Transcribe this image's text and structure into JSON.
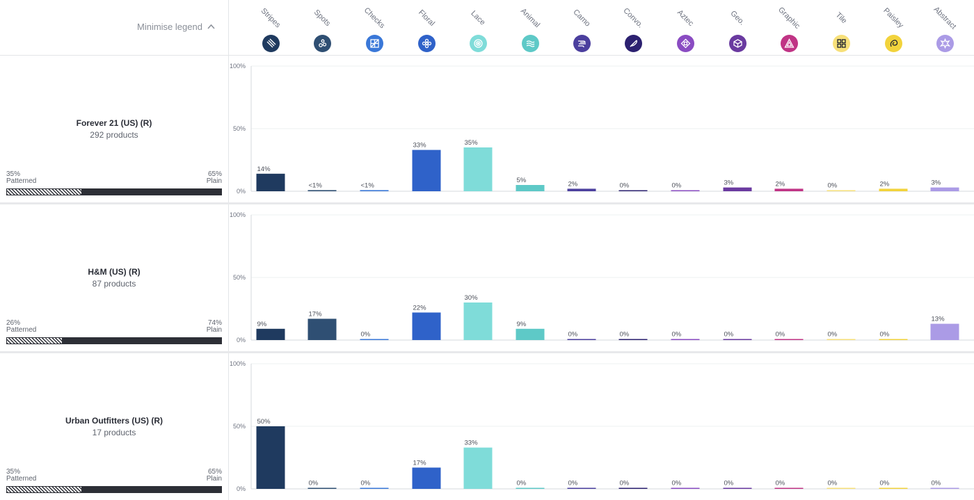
{
  "legend": {
    "minimise_label": "Minimise legend",
    "minimise_icon": "chevron-up-icon",
    "items": [
      {
        "label": "Stripes",
        "color": "#1f3a5f",
        "icon": "stripes-icon"
      },
      {
        "label": "Spots",
        "color": "#2f4f73",
        "icon": "spots-icon"
      },
      {
        "label": "Checks",
        "color": "#3a78d8",
        "icon": "checks-icon"
      },
      {
        "label": "Floral",
        "color": "#2f62c9",
        "icon": "floral-icon"
      },
      {
        "label": "Lace",
        "color": "#7fdcd9",
        "icon": "lace-icon"
      },
      {
        "label": "Animal",
        "color": "#5ec9c7",
        "icon": "animal-icon"
      },
      {
        "label": "Camo",
        "color": "#4b3f9e",
        "icon": "camo-icon"
      },
      {
        "label": "Convo.",
        "color": "#2c2170",
        "icon": "convo-icon"
      },
      {
        "label": "Aztec",
        "color": "#8a4cc2",
        "icon": "aztec-icon"
      },
      {
        "label": "Geo.",
        "color": "#6a3aa0",
        "icon": "geo-icon"
      },
      {
        "label": "Graphic",
        "color": "#c03485",
        "icon": "graphic-icon"
      },
      {
        "label": "Tile",
        "color": "#f7e07a",
        "icon": "tile-icon"
      },
      {
        "label": "Paisley",
        "color": "#f2d33c",
        "icon": "paisley-icon"
      },
      {
        "label": "Abstract",
        "color": "#ab9be6",
        "icon": "abstract-icon"
      }
    ]
  },
  "brands": [
    {
      "name": "Forever 21 (US) (R)",
      "count": "292 products",
      "patterned_pct": "35%",
      "patterned_label": "Patterned",
      "plain_pct": "65%",
      "plain_label": "Plain",
      "patterned_share": 0.35
    },
    {
      "name": "H&M (US) (R)",
      "count": "87 products",
      "patterned_pct": "26%",
      "patterned_label": "Patterned",
      "plain_pct": "74%",
      "plain_label": "Plain",
      "patterned_share": 0.26
    },
    {
      "name": "Urban Outfitters (US) (R)",
      "count": "17 products",
      "patterned_pct": "35%",
      "patterned_label": "Patterned",
      "plain_pct": "65%",
      "plain_label": "Plain",
      "patterned_share": 0.35
    }
  ],
  "chart_data": [
    {
      "type": "bar",
      "categories": [
        "Stripes",
        "Spots",
        "Checks",
        "Floral",
        "Lace",
        "Animal",
        "Camo",
        "Convo.",
        "Aztec",
        "Geo.",
        "Graphic",
        "Tile",
        "Paisley",
        "Abstract"
      ],
      "values": [
        14,
        0.9,
        0.9,
        33,
        35,
        5,
        2,
        0,
        0,
        3,
        2,
        0,
        2,
        3
      ],
      "value_labels": [
        "14%",
        "<1%",
        "<1%",
        "33%",
        "35%",
        "5%",
        "2%",
        "0%",
        "0%",
        "3%",
        "2%",
        "0%",
        "2%",
        "3%"
      ],
      "y_ticks": [
        "0%",
        "50%",
        "100%"
      ],
      "ylim": [
        0,
        100
      ]
    },
    {
      "type": "bar",
      "categories": [
        "Stripes",
        "Spots",
        "Checks",
        "Floral",
        "Lace",
        "Animal",
        "Camo",
        "Convo.",
        "Aztec",
        "Geo.",
        "Graphic",
        "Tile",
        "Paisley",
        "Abstract"
      ],
      "values": [
        9,
        17,
        0,
        22,
        30,
        9,
        0,
        0,
        0,
        0,
        0,
        0,
        0,
        13
      ],
      "value_labels": [
        "9%",
        "17%",
        "0%",
        "22%",
        "30%",
        "9%",
        "0%",
        "0%",
        "0%",
        "0%",
        "0%",
        "0%",
        "0%",
        "13%"
      ],
      "y_ticks": [
        "0%",
        "50%",
        "100%"
      ],
      "ylim": [
        0,
        100
      ]
    },
    {
      "type": "bar",
      "categories": [
        "Stripes",
        "Spots",
        "Checks",
        "Floral",
        "Lace",
        "Animal",
        "Camo",
        "Convo.",
        "Aztec",
        "Geo.",
        "Graphic",
        "Tile",
        "Paisley",
        "Abstract"
      ],
      "values": [
        50,
        0,
        0,
        17,
        33,
        0,
        0,
        0,
        0,
        0,
        0,
        0,
        0,
        0
      ],
      "value_labels": [
        "50%",
        "0%",
        "0%",
        "17%",
        "33%",
        "0%",
        "0%",
        "0%",
        "0%",
        "0%",
        "0%",
        "0%",
        "0%",
        "0%"
      ],
      "y_ticks": [
        "0%",
        "50%",
        "100%"
      ],
      "ylim": [
        0,
        100
      ]
    }
  ]
}
